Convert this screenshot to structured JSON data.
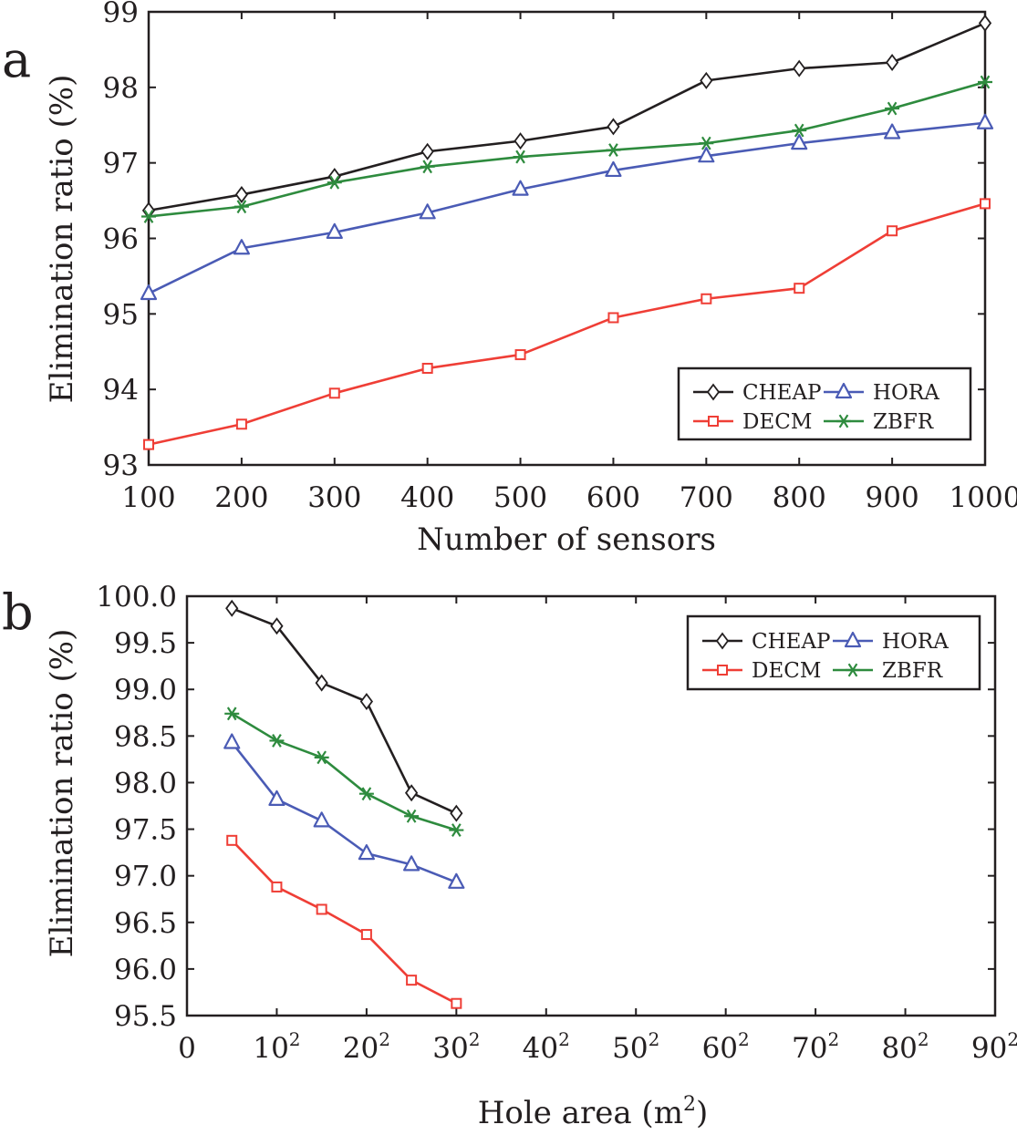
{
  "chart_data": [
    {
      "panel": "a",
      "type": "line",
      "xlabel": "Number of sensors",
      "ylabel": "Elimination ratio (%)",
      "xlim": [
        100,
        1000
      ],
      "ylim": [
        93,
        99
      ],
      "x_ticks": [
        100,
        200,
        300,
        400,
        500,
        600,
        700,
        800,
        900,
        1000
      ],
      "y_ticks": [
        93,
        94,
        95,
        96,
        97,
        98,
        99
      ],
      "x": [
        100,
        200,
        300,
        400,
        500,
        600,
        700,
        800,
        900,
        1000
      ],
      "legend_placement": "bottom-right",
      "series": [
        {
          "name": "CHEAP",
          "color": "#231f20",
          "marker": "diamond",
          "values": [
            96.37,
            96.58,
            96.82,
            97.15,
            97.29,
            97.48,
            98.09,
            98.25,
            98.33,
            98.85
          ]
        },
        {
          "name": "HORA",
          "color": "#4a5bb5",
          "marker": "triangle",
          "values": [
            95.27,
            95.87,
            96.08,
            96.34,
            96.65,
            96.9,
            97.09,
            97.26,
            97.4,
            97.53
          ]
        },
        {
          "name": "DECM",
          "color": "#ef3e36",
          "marker": "square",
          "values": [
            93.27,
            93.54,
            93.95,
            94.28,
            94.46,
            94.95,
            95.2,
            95.34,
            96.1,
            96.46
          ]
        },
        {
          "name": "ZBFR",
          "color": "#2e8b3e",
          "marker": "star",
          "values": [
            96.29,
            96.42,
            96.74,
            96.95,
            97.08,
            97.17,
            97.26,
            97.43,
            97.72,
            98.07
          ]
        }
      ]
    },
    {
      "panel": "b",
      "type": "line",
      "xlabel": "Hole area (m",
      "xlabel_sup": "2",
      "xlabel_end": ")",
      "ylabel": "Elimination ratio (%)",
      "xlim": [
        0,
        8100
      ],
      "ylim": [
        95.5,
        100.0
      ],
      "x_ticks": [
        {
          "label": "0",
          "sup": "",
          "value": 0
        },
        {
          "label": "10",
          "sup": "2",
          "value": 100
        },
        {
          "label": "20",
          "sup": "2",
          "value": 400
        },
        {
          "label": "30",
          "sup": "2",
          "value": 900
        },
        {
          "label": "40",
          "sup": "2",
          "value": 1600
        },
        {
          "label": "50",
          "sup": "2",
          "value": 2500
        },
        {
          "label": "60",
          "sup": "2",
          "value": 3600
        },
        {
          "label": "70",
          "sup": "2",
          "value": 4900
        },
        {
          "label": "80",
          "sup": "2",
          "value": 6400
        },
        {
          "label": "90",
          "sup": "2",
          "value": 8100
        }
      ],
      "y_ticks": [
        "95.5",
        "96.0",
        "96.5",
        "97.0",
        "97.5",
        "98.0",
        "98.5",
        "99.0",
        "99.5",
        "100.0"
      ],
      "x": [
        25,
        100,
        225,
        400,
        625,
        900
      ],
      "legend_placement": "top-right",
      "series": [
        {
          "name": "CHEAP",
          "color": "#231f20",
          "marker": "diamond",
          "values": [
            99.87,
            99.68,
            99.07,
            98.87,
            97.89,
            97.67
          ]
        },
        {
          "name": "HORA",
          "color": "#4a5bb5",
          "marker": "triangle",
          "values": [
            98.43,
            97.82,
            97.59,
            97.24,
            97.12,
            96.93
          ]
        },
        {
          "name": "DECM",
          "color": "#ef3e36",
          "marker": "square",
          "values": [
            97.38,
            96.88,
            96.64,
            96.37,
            95.88,
            95.63
          ]
        },
        {
          "name": "ZBFR",
          "color": "#2e8b3e",
          "marker": "star",
          "values": [
            98.74,
            98.45,
            98.27,
            97.88,
            97.64,
            97.49
          ]
        }
      ]
    }
  ]
}
